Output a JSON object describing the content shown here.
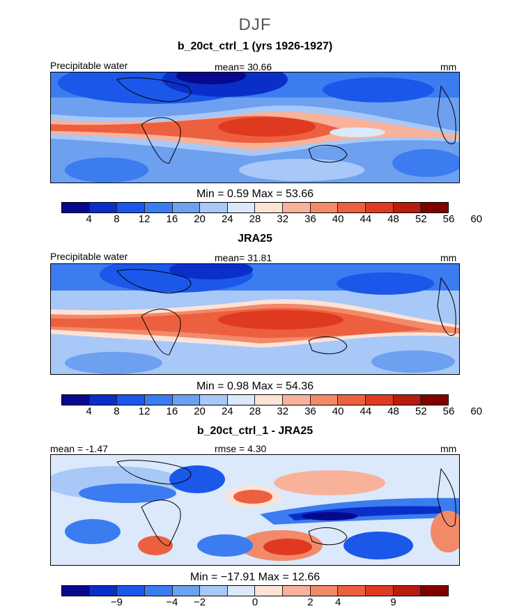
{
  "figure": {
    "season": "DJF"
  },
  "colors": [
    "#08088c",
    "#0a2fc8",
    "#1b57e8",
    "#3b7cf0",
    "#6ea0f0",
    "#a8c8f8",
    "#dbe9fb",
    "#fde3d6",
    "#f8b29a",
    "#f28a6a",
    "#ec6040",
    "#df3a20",
    "#b81c0c",
    "#800000"
  ],
  "panels": [
    {
      "title": "b_20ct_ctrl_1 (yrs 1926-1927)",
      "left_label": "Precipitable water",
      "center_label": "mean=  30.66",
      "right_label": "mm",
      "minmax": "Min =    0.59  Max =   53.66",
      "ticks": [
        "4",
        "8",
        "12",
        "16",
        "20",
        "24",
        "28",
        "32",
        "36",
        "40",
        "44",
        "48",
        "52",
        "56",
        "60"
      ]
    },
    {
      "title": "JRA25",
      "left_label": "Precipitable water",
      "center_label": "mean=  31.81",
      "right_label": "mm",
      "minmax": "Min =    0.98  Max =   54.36",
      "ticks": [
        "4",
        "8",
        "12",
        "16",
        "20",
        "24",
        "28",
        "32",
        "36",
        "40",
        "44",
        "48",
        "52",
        "56",
        "60"
      ]
    },
    {
      "title": "b_20ct_ctrl_1 - JRA25",
      "left_label": "mean =  -1.47",
      "center_label": "rmse =   4.30",
      "right_label": "mm",
      "minmax": "Min = −17.91  Max =  12.66",
      "ticks": [
        "−9",
        "−4",
        "−2",
        "0",
        "2",
        "4",
        "9"
      ]
    }
  ]
}
